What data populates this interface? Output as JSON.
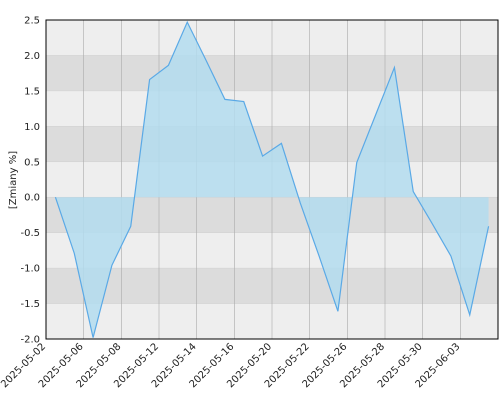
{
  "chart_data": {
    "type": "area",
    "y_label": "[Zmiany %]",
    "x_labels": [
      "2025-05-02",
      "2025-05-06",
      "2025-05-08",
      "2025-05-12",
      "2025-05-14",
      "2025-05-16",
      "2025-05-20",
      "2025-05-22",
      "2025-05-26",
      "2025-05-28",
      "2025-05-30",
      "2025-06-03"
    ],
    "values": [
      0.0,
      -0.79,
      -1.98,
      -0.96,
      -0.41,
      1.66,
      1.86,
      2.47,
      1.93,
      1.38,
      1.35,
      0.58,
      0.76,
      -0.08,
      -0.83,
      -1.61,
      0.49,
      1.16,
      1.83,
      0.08,
      -0.37,
      -0.83,
      -1.66,
      -0.41
    ],
    "color": "#5aa9e6",
    "fill": "#b3dcef",
    "ylim": [
      -2,
      2.5
    ],
    "yticks": [
      {
        "value": -2,
        "label": "-2.0"
      },
      -1.5,
      {
        "value": -1,
        "label": "-1.0"
      },
      -0.5,
      {
        "value": 0,
        "label": "0.0"
      },
      0.5,
      {
        "value": 1,
        "label": "1.0"
      },
      1.5,
      {
        "value": 2,
        "label": "2.0"
      },
      2.5
    ],
    "grid": true
  }
}
